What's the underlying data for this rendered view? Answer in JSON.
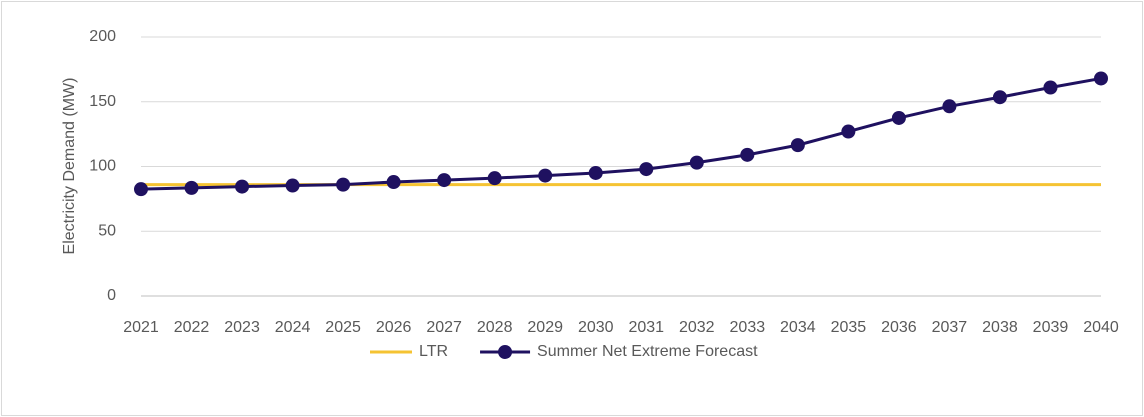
{
  "chart_data": {
    "type": "line",
    "y_label": "Electricity Demand (MW)",
    "categories": [
      "2021",
      "2022",
      "2023",
      "2024",
      "2025",
      "2026",
      "2027",
      "2028",
      "2029",
      "2030",
      "2031",
      "2032",
      "2033",
      "2034",
      "2035",
      "2036",
      "2037",
      "2038",
      "2039",
      "2040"
    ],
    "series": [
      {
        "name": "LTR",
        "color": "#F5C332",
        "marker": false,
        "values": [
          86,
          86,
          86,
          86,
          86,
          86,
          86,
          86,
          86,
          86,
          86,
          86,
          86,
          86,
          86,
          86,
          86,
          86,
          86,
          86
        ]
      },
      {
        "name": "Summer Net Extreme Forecast",
        "color": "#1F1160",
        "marker": true,
        "values": [
          82.5,
          83.5,
          84.5,
          85.3,
          86,
          88,
          89.5,
          91,
          93,
          95,
          98,
          103,
          109,
          116.5,
          127,
          137.5,
          146.5,
          153.5,
          161,
          168
        ]
      }
    ],
    "ylim": [
      0,
      200
    ],
    "yticks": [
      0,
      50,
      100,
      150,
      200
    ],
    "grid": true,
    "legend": "bottom"
  }
}
